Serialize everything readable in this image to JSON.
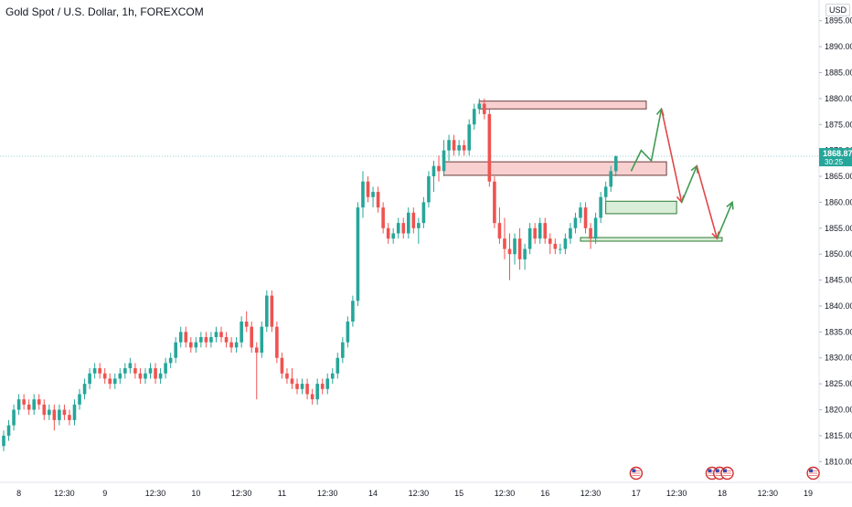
{
  "title": "Gold Spot / U.S. Dollar, 1h, FOREXCOM",
  "currency": "USD",
  "last_price": {
    "value": "1868.87",
    "countdown": "30:25",
    "color": "#26a69a"
  },
  "colors": {
    "up": "#26a69a",
    "down": "#ef5350",
    "zone_red": "#f8c8c8",
    "zone_green": "#cfe9cf"
  },
  "chart_data": {
    "type": "candlestick",
    "title": "Gold Spot / U.S. Dollar, 1h, FOREXCOM",
    "ylim": [
      1806,
      1899
    ],
    "y_ticks": [
      "1810.00",
      "1815.00",
      "1820.00",
      "1825.00",
      "1830.00",
      "1835.00",
      "1840.00",
      "1845.00",
      "1850.00",
      "1855.00",
      "1860.00",
      "1865.00",
      "1870.00",
      "1875.00",
      "1880.00",
      "1885.00",
      "1890.00",
      "1895.00"
    ],
    "x_ticks": [
      {
        "label": "8",
        "i": 3
      },
      {
        "label": "12:30",
        "i": 12
      },
      {
        "label": "9",
        "i": 20
      },
      {
        "label": "12:30",
        "i": 30
      },
      {
        "label": "10",
        "i": 38
      },
      {
        "label": "12:30",
        "i": 47
      },
      {
        "label": "11",
        "i": 55
      },
      {
        "label": "12:30",
        "i": 64
      },
      {
        "label": "14",
        "i": 73
      },
      {
        "label": "12:30",
        "i": 82
      },
      {
        "label": "15",
        "i": 90
      },
      {
        "label": "12:30",
        "i": 99
      },
      {
        "label": "16",
        "i": 107
      },
      {
        "label": "12:30",
        "i": 116
      },
      {
        "label": "17",
        "i": 125
      },
      {
        "label": "12:30",
        "i": 133
      },
      {
        "label": "18",
        "i": 142
      },
      {
        "label": "12:30",
        "i": 151
      },
      {
        "label": "19",
        "i": 159
      }
    ],
    "candles": [
      [
        1813,
        1816,
        1812,
        1815
      ],
      [
        1815,
        1818,
        1814,
        1817
      ],
      [
        1817,
        1821,
        1816,
        1820
      ],
      [
        1820,
        1823,
        1819,
        1822
      ],
      [
        1822,
        1823,
        1820,
        1821
      ],
      [
        1821,
        1822,
        1819,
        1820
      ],
      [
        1820,
        1823,
        1819,
        1822
      ],
      [
        1822,
        1823,
        1820,
        1821
      ],
      [
        1821,
        1822,
        1818,
        1819
      ],
      [
        1819,
        1821,
        1818,
        1820
      ],
      [
        1820,
        1821,
        1816,
        1818
      ],
      [
        1818,
        1821,
        1817,
        1820
      ],
      [
        1820,
        1821,
        1818,
        1819
      ],
      [
        1819,
        1820,
        1817,
        1818
      ],
      [
        1818,
        1822,
        1817,
        1821
      ],
      [
        1821,
        1824,
        1820,
        1823
      ],
      [
        1823,
        1826,
        1822,
        1825
      ],
      [
        1825,
        1828,
        1824,
        1827
      ],
      [
        1827,
        1829,
        1826,
        1828
      ],
      [
        1828,
        1829,
        1826,
        1827
      ],
      [
        1827,
        1828,
        1825,
        1826
      ],
      [
        1826,
        1827,
        1824,
        1825
      ],
      [
        1825,
        1827,
        1824,
        1826
      ],
      [
        1826,
        1828,
        1825,
        1827
      ],
      [
        1827,
        1829,
        1826,
        1828
      ],
      [
        1828,
        1830,
        1827,
        1829
      ],
      [
        1828,
        1829,
        1826,
        1827
      ],
      [
        1827,
        1828,
        1825,
        1826
      ],
      [
        1826,
        1828,
        1825,
        1827
      ],
      [
        1827,
        1829,
        1826,
        1828
      ],
      [
        1828,
        1829,
        1825,
        1826
      ],
      [
        1826,
        1828,
        1825,
        1827
      ],
      [
        1827,
        1830,
        1826,
        1829
      ],
      [
        1829,
        1831,
        1828,
        1830
      ],
      [
        1830,
        1834,
        1829,
        1833
      ],
      [
        1833,
        1836,
        1832,
        1835
      ],
      [
        1835,
        1836,
        1832,
        1833
      ],
      [
        1833,
        1834,
        1831,
        1832
      ],
      [
        1832,
        1834,
        1831,
        1833
      ],
      [
        1833,
        1835,
        1832,
        1834
      ],
      [
        1834,
        1835,
        1832,
        1833
      ],
      [
        1833,
        1835,
        1832,
        1834
      ],
      [
        1834,
        1836,
        1833,
        1835
      ],
      [
        1835,
        1836,
        1833,
        1834
      ],
      [
        1834,
        1835,
        1832,
        1833
      ],
      [
        1833,
        1834,
        1831,
        1832
      ],
      [
        1832,
        1834,
        1831,
        1833
      ],
      [
        1833,
        1838,
        1832,
        1837
      ],
      [
        1837,
        1839,
        1835,
        1836
      ],
      [
        1836,
        1837,
        1831,
        1832
      ],
      [
        1832,
        1833,
        1822,
        1831
      ],
      [
        1831,
        1837,
        1830,
        1836
      ],
      [
        1836,
        1843,
        1835,
        1842
      ],
      [
        1842,
        1843,
        1835,
        1836
      ],
      [
        1836,
        1837,
        1829,
        1830
      ],
      [
        1830,
        1831,
        1826,
        1827
      ],
      [
        1827,
        1828,
        1825,
        1826
      ],
      [
        1826,
        1828,
        1824,
        1825
      ],
      [
        1825,
        1826,
        1823,
        1824
      ],
      [
        1824,
        1826,
        1823,
        1825
      ],
      [
        1825,
        1826,
        1822,
        1823
      ],
      [
        1823,
        1824,
        1821,
        1822
      ],
      [
        1822,
        1826,
        1821,
        1825
      ],
      [
        1825,
        1826,
        1823,
        1824
      ],
      [
        1824,
        1827,
        1823,
        1826
      ],
      [
        1826,
        1828,
        1825,
        1827
      ],
      [
        1827,
        1831,
        1826,
        1830
      ],
      [
        1830,
        1834,
        1829,
        1833
      ],
      [
        1833,
        1838,
        1832,
        1837
      ],
      [
        1837,
        1842,
        1836,
        1841
      ],
      [
        1841,
        1860,
        1840,
        1859
      ],
      [
        1859,
        1866,
        1857,
        1864
      ],
      [
        1864,
        1865,
        1860,
        1861
      ],
      [
        1861,
        1863,
        1859,
        1862
      ],
      [
        1862,
        1863,
        1858,
        1859
      ],
      [
        1859,
        1860,
        1854,
        1855
      ],
      [
        1855,
        1856,
        1852,
        1853
      ],
      [
        1853,
        1855,
        1852,
        1854
      ],
      [
        1854,
        1857,
        1853,
        1856
      ],
      [
        1856,
        1857,
        1853,
        1854
      ],
      [
        1854,
        1859,
        1853,
        1858
      ],
      [
        1858,
        1859,
        1854,
        1855
      ],
      [
        1855,
        1857,
        1852,
        1856
      ],
      [
        1856,
        1861,
        1855,
        1860
      ],
      [
        1860,
        1866,
        1859,
        1865
      ],
      [
        1865,
        1868,
        1862,
        1867
      ],
      [
        1867,
        1869,
        1864,
        1866
      ],
      [
        1866,
        1872,
        1865,
        1870
      ],
      [
        1870,
        1873,
        1868,
        1872
      ],
      [
        1872,
        1873,
        1869,
        1870
      ],
      [
        1870,
        1872,
        1869,
        1871
      ],
      [
        1871,
        1872,
        1869,
        1870
      ],
      [
        1870,
        1876,
        1869,
        1875
      ],
      [
        1875,
        1879,
        1874,
        1878
      ],
      [
        1878,
        1880,
        1877,
        1879
      ],
      [
        1879,
        1880,
        1876,
        1877
      ],
      [
        1877,
        1878,
        1863,
        1864
      ],
      [
        1864,
        1865,
        1855,
        1856
      ],
      [
        1856,
        1859,
        1852,
        1853
      ],
      [
        1853,
        1857,
        1849,
        1851
      ],
      [
        1851,
        1854,
        1845,
        1850
      ],
      [
        1850,
        1854,
        1848,
        1853
      ],
      [
        1853,
        1855,
        1847,
        1849
      ],
      [
        1849,
        1852,
        1847,
        1851
      ],
      [
        1851,
        1856,
        1850,
        1855
      ],
      [
        1855,
        1856,
        1852,
        1853
      ],
      [
        1853,
        1857,
        1852,
        1856
      ],
      [
        1856,
        1857,
        1852,
        1853
      ],
      [
        1853,
        1854,
        1850,
        1852
      ],
      [
        1852,
        1853,
        1850,
        1851
      ],
      [
        1851,
        1852,
        1850,
        1851
      ],
      [
        1851,
        1854,
        1850,
        1853
      ],
      [
        1853,
        1856,
        1852,
        1855
      ],
      [
        1855,
        1858,
        1854,
        1857
      ],
      [
        1857,
        1860,
        1856,
        1859
      ],
      [
        1859,
        1860,
        1854,
        1855
      ],
      [
        1855,
        1856,
        1851,
        1853
      ],
      [
        1853,
        1858,
        1852,
        1857
      ],
      [
        1857,
        1862,
        1856,
        1861
      ],
      [
        1861,
        1864,
        1860,
        1863
      ],
      [
        1863,
        1867,
        1862,
        1866
      ],
      [
        1866,
        1869,
        1865,
        1868.87
      ]
    ],
    "zones": [
      {
        "type": "red",
        "y1": 1878,
        "y2": 1879.5,
        "i1": 94,
        "i2": 127
      },
      {
        "type": "red",
        "y1": 1865.2,
        "y2": 1867.8,
        "i1": 87,
        "i2": 131
      },
      {
        "type": "green",
        "y1": 1857.8,
        "y2": 1860.2,
        "i1": 119,
        "i2": 133
      },
      {
        "type": "green",
        "y1": 1852.5,
        "y2": 1853.2,
        "i1": 114,
        "i2": 142
      }
    ],
    "paths": [
      {
        "color": "green",
        "points": [
          [
            124,
            1866
          ],
          [
            126,
            1870
          ],
          [
            128,
            1868
          ],
          [
            130,
            1878
          ]
        ]
      },
      {
        "color": "red",
        "points": [
          [
            130,
            1878
          ],
          [
            134,
            1860
          ]
        ]
      },
      {
        "color": "green",
        "points": [
          [
            134,
            1860
          ],
          [
            137,
            1867
          ]
        ]
      },
      {
        "color": "red",
        "points": [
          [
            137,
            1867
          ],
          [
            141,
            1853
          ]
        ]
      },
      {
        "color": "green",
        "points": [
          [
            141,
            1853
          ],
          [
            144,
            1860
          ]
        ]
      }
    ],
    "events": [
      {
        "i": 125,
        "label": "🇺🇸"
      },
      {
        "i": 140,
        "label": "🇺🇸"
      },
      {
        "i": 141.5,
        "label": "🇺🇸"
      },
      {
        "i": 143,
        "label": "🇺🇸"
      },
      {
        "i": 160,
        "label": "🇺🇸"
      }
    ]
  }
}
